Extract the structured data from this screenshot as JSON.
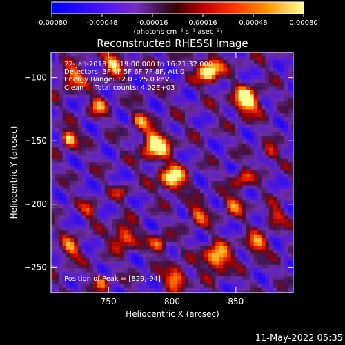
{
  "colorbar": {
    "ticks": [
      "-0.00080",
      "-0.00048",
      "-0.00016",
      "0.00016",
      "0.00048",
      "0.00080"
    ],
    "units": "(photons cm⁻² s⁻¹ asec⁻²)",
    "colors": [
      "#0000ff",
      "#7000ff",
      "#6d2fa0",
      "#4a1c4a",
      "#c00000",
      "#ff3000",
      "#ff9000",
      "#ffff80"
    ]
  },
  "title": "Reconstructed RHESSI Image",
  "annotations": [
    "22-Jan-2013 16:19:00.000 to 16:21:32.000",
    "Detectors: 3F 4F 5F 6F 7F 8F, Att 0",
    "Energy Range: 12.0 - 25.0 keV",
    "Clean     Total counts: 4.02E+03"
  ],
  "peak_label": "Position of Peak = [829,-94]",
  "timestamp": "11-May-2022 05:35",
  "chart_data": {
    "type": "heatmap",
    "title": "Reconstructed RHESSI Image",
    "xlabel": "Heliocentric X (arcsec)",
    "ylabel": "Heliocentric Y (arcsec)",
    "xlim": [
      705,
      895
    ],
    "ylim": [
      -270,
      -80
    ],
    "xticks": [
      750,
      800,
      850
    ],
    "yticks": [
      -100,
      -150,
      -200,
      -250
    ],
    "colorbar_range": [
      -0.0008,
      0.0008
    ],
    "peak_position": [
      829,
      -94
    ],
    "blobs": [
      {
        "x": 829,
        "y": -94,
        "r": 9,
        "v": 1.0
      },
      {
        "x": 755,
        "y": -88,
        "r": 8,
        "v": 0.75
      },
      {
        "x": 722,
        "y": -100,
        "r": 9,
        "v": 0.6
      },
      {
        "x": 742,
        "y": -122,
        "r": 7,
        "v": 0.55
      },
      {
        "x": 775,
        "y": -133,
        "r": 7,
        "v": 0.55
      },
      {
        "x": 858,
        "y": -118,
        "r": 10,
        "v": 0.95
      },
      {
        "x": 719,
        "y": -148,
        "r": 6,
        "v": 0.9
      },
      {
        "x": 787,
        "y": -153,
        "r": 11,
        "v": 0.9
      },
      {
        "x": 800,
        "y": -180,
        "r": 10,
        "v": 0.85
      },
      {
        "x": 855,
        "y": -180,
        "r": 7,
        "v": 0.5
      },
      {
        "x": 876,
        "y": -160,
        "r": 6,
        "v": 0.45
      },
      {
        "x": 820,
        "y": -208,
        "r": 8,
        "v": 0.55
      },
      {
        "x": 848,
        "y": -200,
        "r": 8,
        "v": 0.5
      },
      {
        "x": 762,
        "y": -226,
        "r": 9,
        "v": 0.7
      },
      {
        "x": 790,
        "y": -232,
        "r": 7,
        "v": 0.6
      },
      {
        "x": 720,
        "y": -235,
        "r": 8,
        "v": 0.55
      },
      {
        "x": 835,
        "y": -243,
        "r": 10,
        "v": 0.85
      },
      {
        "x": 866,
        "y": -232,
        "r": 8,
        "v": 0.6
      },
      {
        "x": 880,
        "y": -210,
        "r": 7,
        "v": 0.5
      },
      {
        "x": 803,
        "y": -258,
        "r": 8,
        "v": 0.75
      },
      {
        "x": 745,
        "y": -262,
        "r": 6,
        "v": 0.45
      },
      {
        "x": 735,
        "y": -205,
        "r": 6,
        "v": 0.4
      },
      {
        "x": 760,
        "y": -190,
        "r": 5,
        "v": 0.35
      }
    ]
  }
}
